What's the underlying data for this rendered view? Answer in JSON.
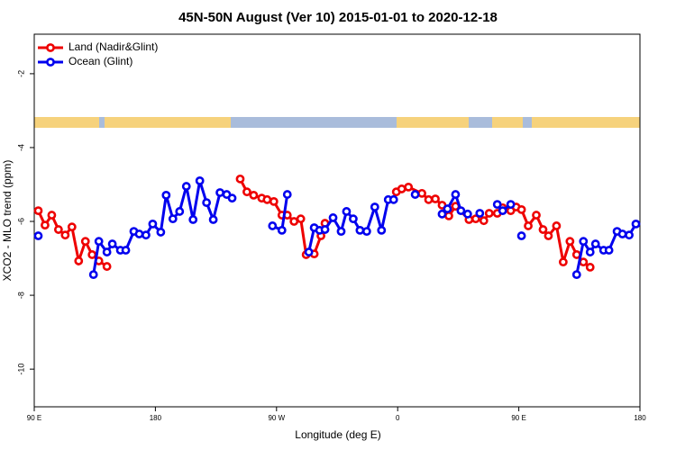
{
  "chart_data": {
    "type": "line",
    "title": "45N-50N August (Ver 10)   2015-01-01 to 2020-12-18",
    "x_label": "Longitude (deg E)",
    "y_label": "XCO2 - MLO trend (ppm)",
    "xlim": [
      90,
      540
    ],
    "xticks": [
      {
        "value": 90,
        "label": "90 E"
      },
      180,
      {
        "value": 270,
        "label": "90 W"
      },
      {
        "value": 360,
        "label": "0"
      },
      {
        "value": 450,
        "label": "90 E"
      },
      {
        "value": 540,
        "label": "180"
      }
    ],
    "ylim": [
      -11.02,
      -0.93
    ],
    "yticks": [
      -2,
      -4,
      -6,
      -8,
      -10
    ],
    "legend": "top-left",
    "series": [
      {
        "name": "Land (Nadir&Glint)",
        "color": "#ee0000",
        "x": [
          93,
          98,
          103,
          108,
          113,
          118,
          123,
          128,
          133,
          138,
          144,
          null,
          243,
          248,
          253,
          259,
          263,
          268,
          274,
          278,
          283,
          288,
          292,
          298,
          303,
          306,
          null,
          359,
          363,
          368,
          378,
          383,
          388,
          393,
          398,
          403,
          413,
          418,
          424,
          428,
          434,
          438,
          444,
          448,
          452,
          457,
          463,
          468,
          472,
          478,
          483,
          488,
          493,
          498,
          503
        ],
        "values": [
          -5.71,
          -6.1,
          -5.83,
          -6.22,
          -6.37,
          -6.15,
          -7.07,
          -6.54,
          -6.9,
          -7.07,
          -7.22,
          null,
          -4.85,
          -5.2,
          -5.29,
          -5.37,
          -5.41,
          -5.46,
          -5.83,
          -5.83,
          -6.0,
          -5.93,
          -6.9,
          -6.88,
          -6.39,
          -6.05,
          null,
          -5.2,
          -5.12,
          -5.07,
          -5.24,
          -5.41,
          -5.39,
          -5.56,
          -5.85,
          -5.59,
          -5.95,
          -5.93,
          -5.98,
          -5.78,
          -5.78,
          -5.63,
          -5.71,
          -5.61,
          -5.68,
          -6.12,
          -5.83,
          -6.22,
          -6.39,
          -6.12,
          -7.1,
          -6.54,
          -6.9,
          -7.1,
          -7.24
        ]
      },
      {
        "name": "Ocean (Glint)",
        "color": "#0000ee",
        "x": [
          93,
          null,
          134,
          138,
          144,
          148,
          154,
          158,
          164,
          168,
          173,
          178,
          184,
          188,
          193,
          198,
          203,
          208,
          213,
          218,
          223,
          228,
          233,
          237,
          null,
          267,
          274,
          278,
          null,
          294,
          298,
          302,
          306,
          312,
          318,
          322,
          327,
          332,
          337,
          343,
          348,
          353,
          357,
          null,
          373,
          null,
          393,
          397,
          403,
          407,
          412,
          null,
          421,
          null,
          434,
          438,
          444,
          null,
          452,
          null,
          493,
          498,
          503,
          507,
          513,
          517,
          523,
          527,
          532,
          537
        ],
        "values": [
          -6.39,
          null,
          -7.44,
          -6.54,
          -6.83,
          -6.61,
          -6.78,
          -6.78,
          -6.27,
          -6.34,
          -6.37,
          -6.07,
          -6.29,
          -5.29,
          -5.93,
          -5.73,
          -5.05,
          -5.95,
          -4.9,
          -5.49,
          -5.95,
          -5.22,
          -5.27,
          -5.37,
          null,
          -6.12,
          -6.24,
          -5.27,
          null,
          -6.83,
          -6.17,
          -6.24,
          -6.22,
          -5.9,
          -6.27,
          -5.73,
          -5.93,
          -6.24,
          -6.27,
          -5.61,
          -6.24,
          -5.41,
          -5.41,
          null,
          -5.27,
          null,
          -5.8,
          -5.66,
          -5.27,
          -5.71,
          -5.8,
          null,
          -5.78,
          null,
          -5.54,
          -5.71,
          -5.54,
          null,
          -6.39,
          null,
          -7.44,
          -6.54,
          -6.83,
          -6.61,
          -6.78,
          -6.78,
          -6.27,
          -6.34,
          -6.37,
          -6.07
        ]
      }
    ]
  }
}
